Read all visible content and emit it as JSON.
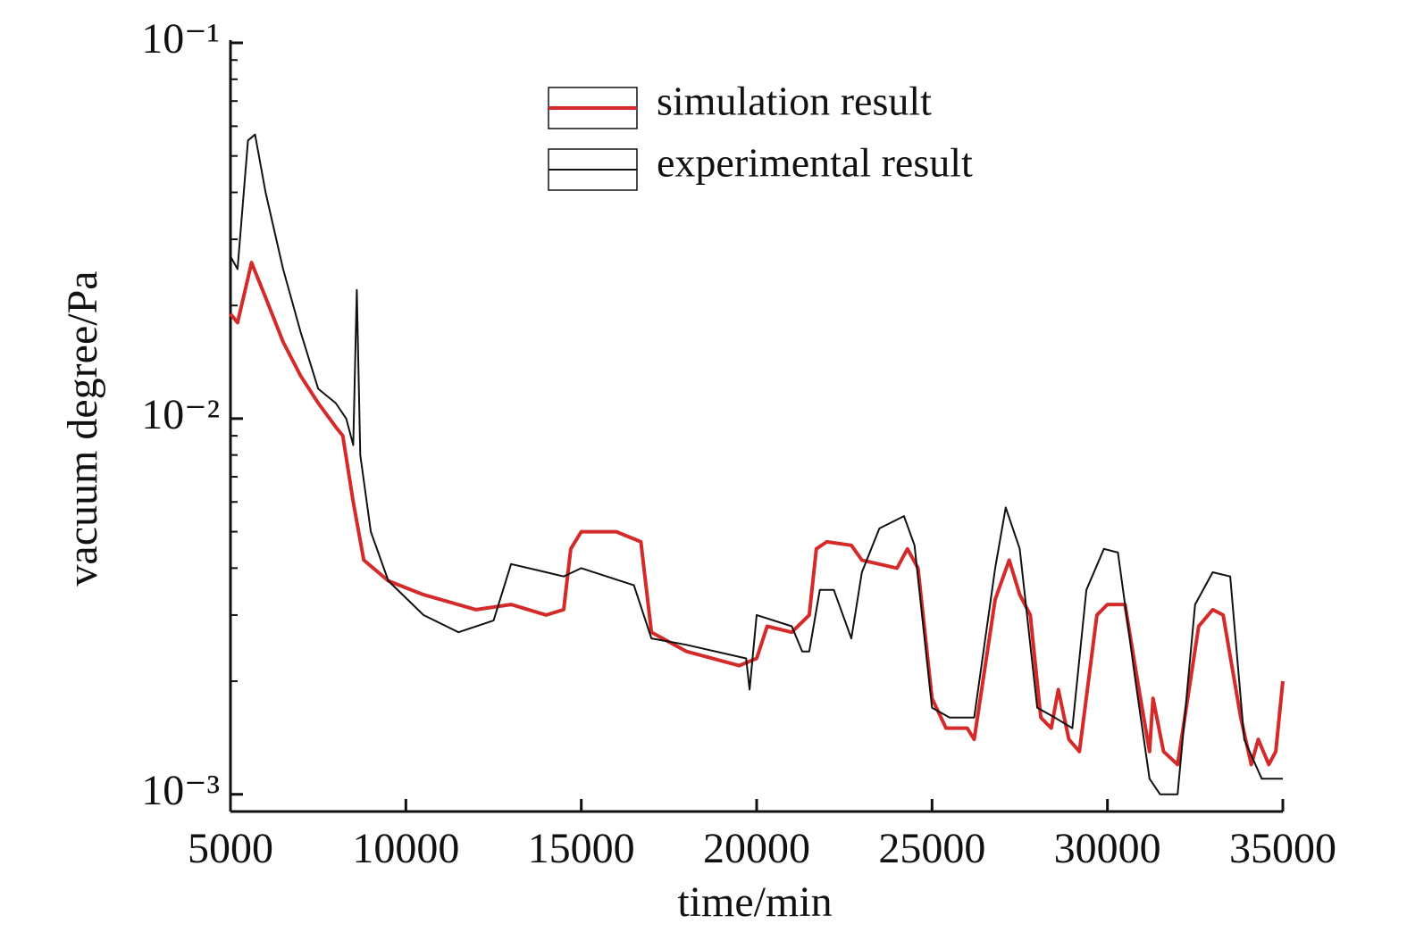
{
  "chart_data": {
    "type": "line",
    "x_label": "time/min",
    "y_label": "vacuum degree/Pa",
    "xlim": [
      5000,
      35000
    ],
    "xticks": [
      5000,
      10000,
      15000,
      20000,
      25000,
      30000,
      35000
    ],
    "ylim": [
      0.0009,
      0.1
    ],
    "log_y": true,
    "yticks": [
      {
        "value": 0.1,
        "label": "10⁻¹"
      },
      {
        "value": 0.01,
        "label": "10⁻²"
      },
      {
        "value": 0.001,
        "label": "10⁻³"
      }
    ],
    "yminorticks": [
      0.002,
      0.003,
      0.004,
      0.005,
      0.006,
      0.007,
      0.008,
      0.009,
      0.02,
      0.03,
      0.04,
      0.05,
      0.06,
      0.07,
      0.08,
      0.09
    ],
    "legend": "upper right",
    "series": [
      {
        "name": "simulation result",
        "color": "#d42a2a",
        "x": [
          5000,
          5200,
          5600,
          6000,
          6500,
          7000,
          7500,
          8000,
          8200,
          8500,
          8800,
          9500,
          10500,
          12000,
          13000,
          14000,
          14500,
          14700,
          15000,
          16000,
          16700,
          17000,
          18000,
          19500,
          20000,
          20300,
          21000,
          21500,
          21700,
          22000,
          22700,
          23000,
          24000,
          24300,
          24600,
          25000,
          25400,
          26000,
          26200,
          26800,
          27200,
          27500,
          27800,
          28100,
          28400,
          28600,
          28900,
          29200,
          29700,
          30000,
          30500,
          30900,
          31200,
          31300,
          31600,
          32000,
          32600,
          33000,
          33300,
          33800,
          34100,
          34300,
          34600,
          34800,
          35000
        ],
        "values": [
          0.019,
          0.018,
          0.026,
          0.021,
          0.016,
          0.013,
          0.011,
          0.0095,
          0.009,
          0.006,
          0.0042,
          0.0037,
          0.0034,
          0.0031,
          0.0032,
          0.003,
          0.0031,
          0.0045,
          0.005,
          0.005,
          0.0047,
          0.0027,
          0.0024,
          0.0022,
          0.0023,
          0.0028,
          0.0027,
          0.003,
          0.0045,
          0.0047,
          0.0046,
          0.0042,
          0.004,
          0.0045,
          0.004,
          0.0018,
          0.0015,
          0.0015,
          0.0014,
          0.0033,
          0.0042,
          0.0034,
          0.003,
          0.0016,
          0.0015,
          0.0019,
          0.0014,
          0.0013,
          0.003,
          0.0032,
          0.0032,
          0.0019,
          0.0013,
          0.0018,
          0.0013,
          0.0012,
          0.0028,
          0.0031,
          0.003,
          0.0016,
          0.0012,
          0.0014,
          0.0012,
          0.0013,
          0.002
        ]
      },
      {
        "name": "experimental result",
        "color": "#111111",
        "x": [
          5000,
          5200,
          5500,
          5700,
          6000,
          6500,
          7000,
          7500,
          8000,
          8300,
          8500,
          8600,
          8700,
          9000,
          9500,
          10500,
          11500,
          12500,
          13000,
          14000,
          14500,
          15000,
          16500,
          17000,
          18000,
          19700,
          19800,
          20000,
          21000,
          21300,
          21500,
          21800,
          22200,
          22700,
          23000,
          23500,
          24200,
          24500,
          25000,
          25500,
          26200,
          26800,
          27100,
          27500,
          28000,
          28500,
          29000,
          29400,
          29900,
          30300,
          30800,
          31200,
          31500,
          32000,
          32500,
          33000,
          33500,
          33900,
          34400,
          35000
        ],
        "values": [
          0.027,
          0.025,
          0.055,
          0.057,
          0.04,
          0.025,
          0.017,
          0.012,
          0.011,
          0.01,
          0.0085,
          0.022,
          0.008,
          0.005,
          0.0037,
          0.003,
          0.0027,
          0.0029,
          0.0041,
          0.0039,
          0.0038,
          0.004,
          0.0036,
          0.0026,
          0.0025,
          0.0023,
          0.0019,
          0.003,
          0.0028,
          0.0024,
          0.0024,
          0.0035,
          0.0035,
          0.0026,
          0.0039,
          0.0051,
          0.0055,
          0.0046,
          0.0017,
          0.0016,
          0.0016,
          0.004,
          0.0058,
          0.0045,
          0.0017,
          0.0016,
          0.0015,
          0.0035,
          0.0045,
          0.0044,
          0.002,
          0.0011,
          0.001,
          0.001,
          0.0032,
          0.0039,
          0.0038,
          0.0014,
          0.0011,
          0.0011
        ]
      }
    ]
  }
}
